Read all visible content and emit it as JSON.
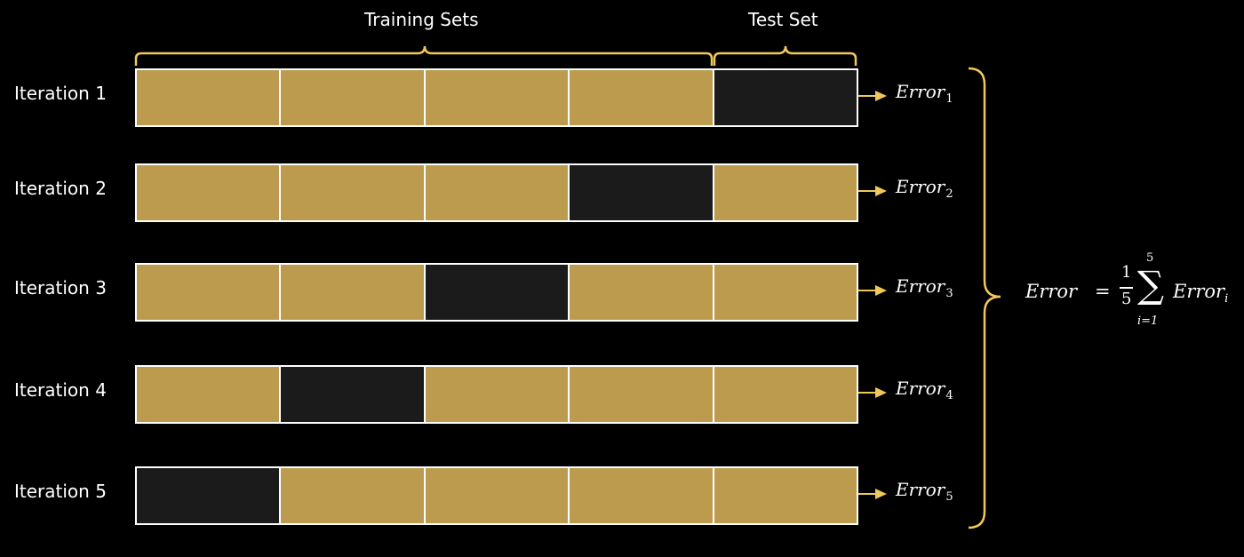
{
  "diagram": {
    "headers": {
      "training": "Training Sets",
      "test": "Test Set"
    },
    "colors": {
      "background": "#000000",
      "train_fold": "#bd9b4e",
      "test_fold": "#1b1b1b",
      "bracket_and_arrow": "#f0c85a",
      "border": "#ffffff"
    },
    "iterations": [
      {
        "label": "Iteration 1",
        "folds": [
          "train",
          "train",
          "train",
          "train",
          "test"
        ],
        "error_base": "Error",
        "error_sub": "1"
      },
      {
        "label": "Iteration 2",
        "folds": [
          "train",
          "train",
          "train",
          "test",
          "train"
        ],
        "error_base": "Error",
        "error_sub": "2"
      },
      {
        "label": "Iteration 3",
        "folds": [
          "train",
          "train",
          "test",
          "train",
          "train"
        ],
        "error_base": "Error",
        "error_sub": "3"
      },
      {
        "label": "Iteration 4",
        "folds": [
          "train",
          "test",
          "train",
          "train",
          "train"
        ],
        "error_base": "Error",
        "error_sub": "4"
      },
      {
        "label": "Iteration 5",
        "folds": [
          "test",
          "train",
          "train",
          "train",
          "train"
        ],
        "error_base": "Error",
        "error_sub": "5"
      }
    ],
    "formula": {
      "lhs": "Error",
      "equals": "=",
      "numerator": "1",
      "denominator": "5",
      "sigma": "∑",
      "upper": "5",
      "lower": "i=1",
      "term_base": "Error",
      "term_sub": "i"
    },
    "icons": {
      "arrow": "arrow-right-icon",
      "brace": "curly-brace-icon"
    }
  }
}
